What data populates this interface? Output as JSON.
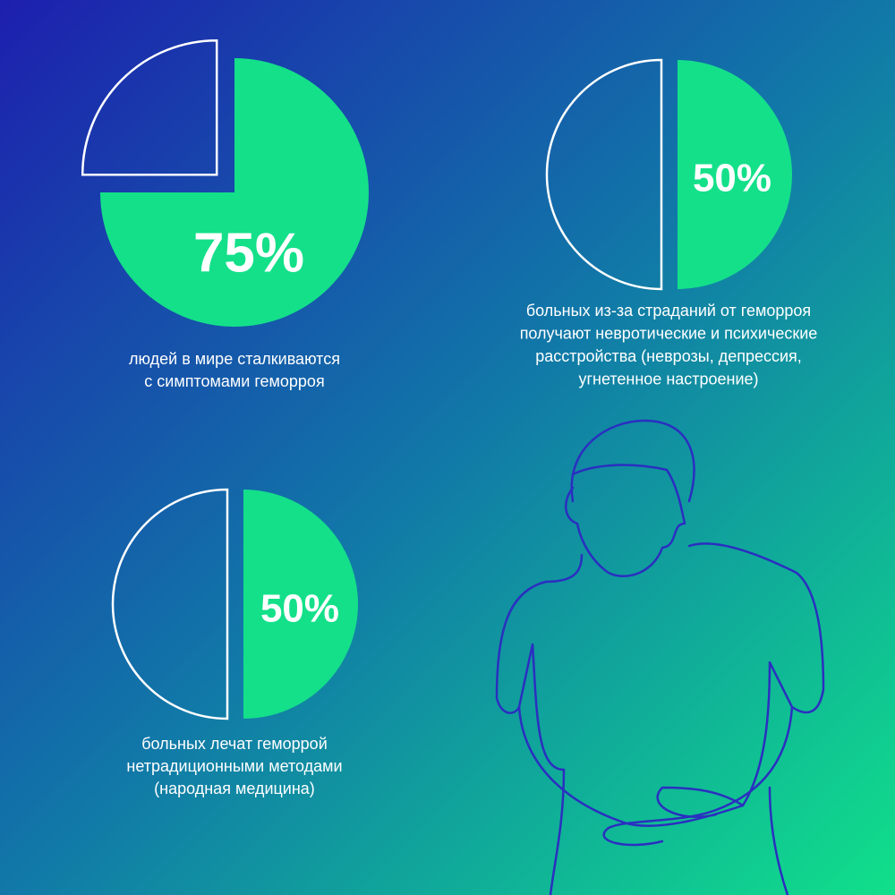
{
  "chart_data": [
    {
      "type": "pie",
      "values": [
        75,
        25
      ],
      "value_labels": [
        "75%",
        null
      ],
      "color": "#14e08a",
      "caption": [
        "людей в мире сталкиваются",
        "с симптомами геморроя"
      ]
    },
    {
      "type": "pie",
      "values": [
        50,
        50
      ],
      "value_labels": [
        "50%",
        null
      ],
      "color": "#14e08a",
      "caption": [
        "больных из-за страданий от геморроя",
        "получают невротические и психические",
        "расстройства (неврозы, депрессия,",
        "угнетенное настроение)"
      ]
    },
    {
      "type": "pie",
      "values": [
        50,
        50
      ],
      "value_labels": [
        "50%",
        null
      ],
      "color": "#14e08a",
      "caption": [
        "больных лечат геморрой",
        "нетрадиционными методами",
        "(народная медицина)"
      ]
    }
  ]
}
